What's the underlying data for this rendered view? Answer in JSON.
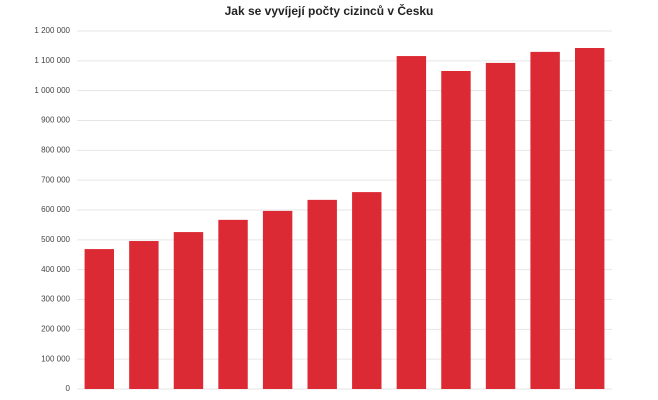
{
  "chart_data": {
    "type": "bar",
    "title": "Jak se vyvíjejí počty cizinců v Česku",
    "categories": [
      null,
      null,
      null,
      null,
      null,
      null,
      null,
      null,
      null,
      null,
      null,
      null
    ],
    "values": [
      469000,
      496000,
      526000,
      567000,
      597000,
      634000,
      660000,
      1116000,
      1066000,
      1093000,
      1130000,
      1143000
    ],
    "color": "#dc2a35",
    "ylim": [
      0,
      1200000
    ],
    "yticks": [
      0,
      {
        "value": 100000,
        "label": "100 000"
      },
      {
        "value": 200000,
        "label": "200 000"
      },
      {
        "value": 300000,
        "label": "300 000"
      },
      {
        "value": 400000,
        "label": "400 000"
      },
      {
        "value": 500000,
        "label": "500 000"
      },
      {
        "value": 600000,
        "label": "600 000"
      },
      {
        "value": 700000,
        "label": "700 000"
      },
      {
        "value": 800000,
        "label": "800 000"
      },
      {
        "value": 900000,
        "label": "900 000"
      },
      {
        "value": 1000000,
        "label": "1 000 000"
      },
      {
        "value": 1100000,
        "label": "1 100 000"
      },
      {
        "value": 1200000,
        "label": "1 200 000"
      }
    ],
    "grid": true
  }
}
